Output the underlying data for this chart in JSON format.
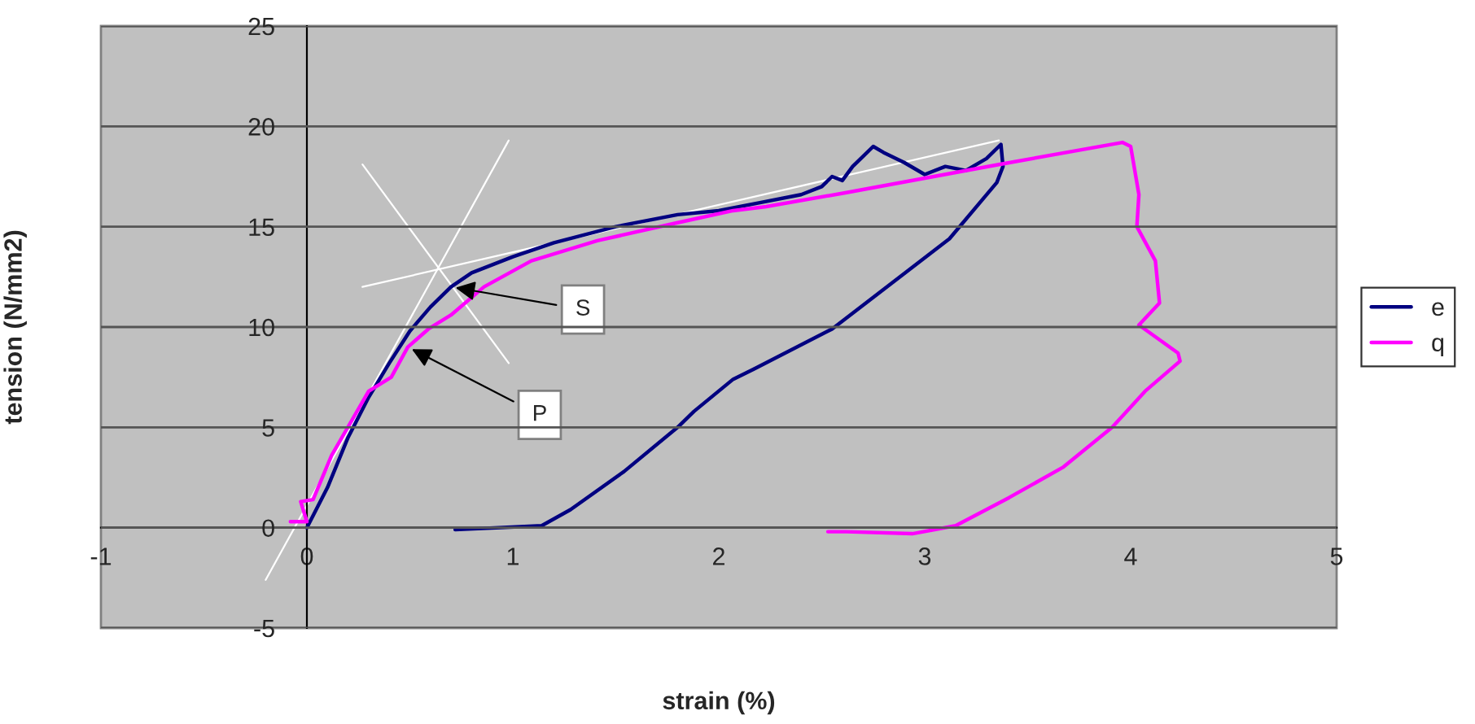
{
  "chart_data": {
    "type": "line",
    "xlabel": "strain (%)",
    "ylabel": "tension (N/mm2)",
    "xlim": [
      -1,
      5
    ],
    "xticks": [
      -1,
      0,
      1,
      2,
      3,
      4,
      5
    ],
    "ylim": [
      -5,
      25
    ],
    "yticks": [
      -5,
      0,
      5,
      10,
      15,
      20,
      25
    ],
    "grid": "y",
    "legend": "right",
    "marker": "none",
    "line_style": "solid",
    "series": [
      {
        "name": "e",
        "color": "#000080",
        "x": [
          0.0,
          0.1,
          0.2,
          0.3,
          0.4,
          0.5,
          0.6,
          0.7,
          0.8,
          1.0,
          1.2,
          1.5,
          1.8,
          2.0,
          2.2,
          2.4,
          2.5,
          2.55,
          2.6,
          2.65,
          2.7,
          2.75,
          2.8,
          2.9,
          3.0,
          3.1,
          3.2,
          3.3,
          3.37,
          3.38,
          3.35,
          3.12,
          2.88,
          2.55,
          2.17,
          2.07,
          1.88,
          1.8,
          1.54,
          1.28,
          1.14,
          0.72
        ],
        "values": [
          0.0,
          2.0,
          4.5,
          6.5,
          8.2,
          9.8,
          11.0,
          12.0,
          12.7,
          13.5,
          14.2,
          15.0,
          15.6,
          15.8,
          16.2,
          16.6,
          17.0,
          17.5,
          17.3,
          18.0,
          18.5,
          19.0,
          18.7,
          18.2,
          17.6,
          18.0,
          17.8,
          18.4,
          19.1,
          18.0,
          17.2,
          14.4,
          12.5,
          9.9,
          7.9,
          7.4,
          5.8,
          5.0,
          2.8,
          0.9,
          0.1,
          -0.1
        ]
      },
      {
        "name": "q",
        "color": "#ff00ff",
        "x": [
          -0.08,
          0.0,
          -0.03,
          0.03,
          0.12,
          0.3,
          0.41,
          0.49,
          0.59,
          0.7,
          0.86,
          1.09,
          1.41,
          1.8,
          2.07,
          2.23,
          2.62,
          3.36,
          3.96,
          4.0,
          4.04,
          4.03,
          4.12,
          4.14,
          4.04,
          4.23,
          4.24,
          4.07,
          3.91,
          3.67,
          3.41,
          3.15,
          2.94,
          2.62,
          2.53
        ],
        "values": [
          0.3,
          0.3,
          1.3,
          1.4,
          3.6,
          6.8,
          7.5,
          9.0,
          9.9,
          10.6,
          12.0,
          13.3,
          14.3,
          15.2,
          15.8,
          16.0,
          16.7,
          18.1,
          19.2,
          19.0,
          16.6,
          15.0,
          13.3,
          11.2,
          10.1,
          8.7,
          8.3,
          6.8,
          5.0,
          3.0,
          1.5,
          0.1,
          -0.3,
          -0.2,
          -0.2
        ]
      },
      {
        "color": "#ffffff",
        "x": [
          -0.2,
          0.98
        ],
        "values": [
          -2.6,
          19.3
        ]
      },
      {
        "color": "#ffffff",
        "x": [
          0.27,
          0.98
        ],
        "values": [
          18.1,
          8.2
        ]
      },
      {
        "color": "#ffffff",
        "x": [
          0.27,
          3.36
        ],
        "values": [
          12.0,
          19.3
        ]
      }
    ],
    "annotations": [
      {
        "text": "S",
        "x": 0.7,
        "y": 12.0
      },
      {
        "text": "P",
        "x": 0.49,
        "y": 9.0
      }
    ]
  }
}
